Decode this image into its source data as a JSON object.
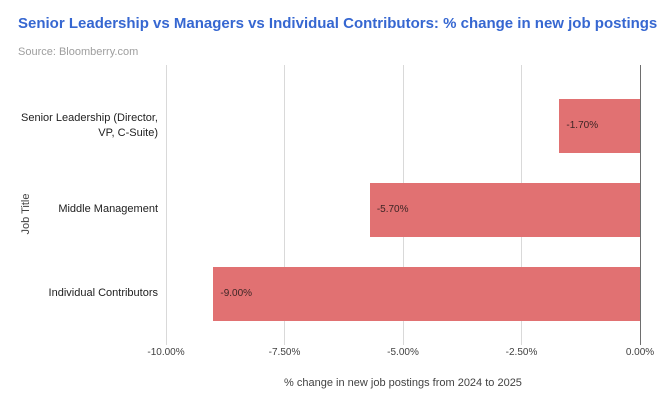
{
  "header": {
    "title": "Senior Leadership vs Managers vs Individual Contributors: % change in new job postings",
    "source": "Source: Bloomberry.com"
  },
  "colors": {
    "title_text": "#3667D1",
    "source_text": "#9E9E9E",
    "bar_fill": "#E17172",
    "bar_label": "#3D2525",
    "grid_line": "#D9D9D9",
    "zero_line": "#6E6E6E",
    "axis_text": "#424242",
    "category_text": "#212121"
  },
  "chart_data": {
    "type": "bar",
    "orientation": "horizontal",
    "title": "Senior Leadership vs Managers vs Individual Contributors: % change in new job postings",
    "subtitle": "Source: Bloomberry.com",
    "categories": [
      "Senior Leadership (Director, VP, C-Suite)",
      "Middle Management",
      "Individual Contributors"
    ],
    "values": [
      -1.7,
      -5.7,
      -9.0
    ],
    "value_labels": [
      "-1.70%",
      "-5.70%",
      "-9.00%"
    ],
    "xlabel": "% change in new job postings from 2024 to 2025",
    "ylabel": "Job Title",
    "xlim": [
      -10,
      0
    ],
    "x_ticks": [
      -10,
      -7.5,
      -5,
      -2.5,
      0
    ],
    "x_tick_labels": [
      "-10.00%",
      "-7.50%",
      "-5.00%",
      "-2.50%",
      "0.00%"
    ],
    "grid": "vertical-only",
    "legend": "none"
  }
}
